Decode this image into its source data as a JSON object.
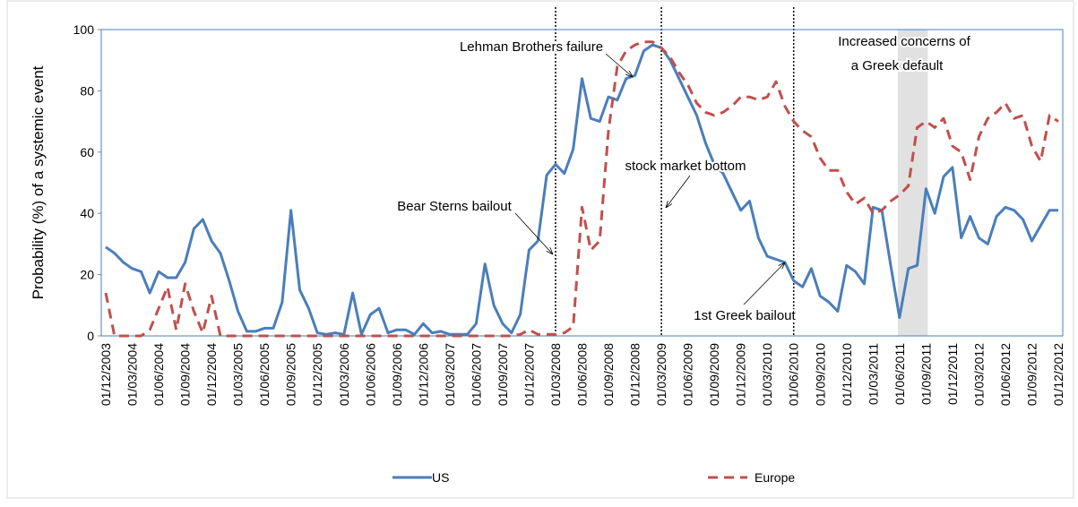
{
  "chart_data": {
    "type": "line",
    "y_label": "Probability (%) of a systemic event",
    "categories": [
      "01/12/2003",
      null,
      null,
      "01/03/2004",
      null,
      null,
      "01/06/2004",
      null,
      null,
      "01/09/2004",
      null,
      null,
      "01/12/2004",
      null,
      null,
      "01/03/2005",
      null,
      null,
      "01/06/2005",
      null,
      null,
      "01/09/2005",
      null,
      null,
      "01/12/2005",
      null,
      null,
      "01/03/2006",
      null,
      null,
      "01/06/2006",
      null,
      null,
      "01/09/2006",
      null,
      null,
      "01/12/2006",
      null,
      null,
      "01/03/2007",
      null,
      null,
      "01/06/2007",
      null,
      null,
      "01/09/2007",
      null,
      null,
      "01/12/2007",
      null,
      null,
      "01/03/2008",
      null,
      null,
      "01/06/2008",
      null,
      null,
      "01/09/2008",
      null,
      null,
      "01/12/2008",
      null,
      null,
      "01/03/2009",
      null,
      null,
      "01/06/2009",
      null,
      null,
      "01/09/2009",
      null,
      null,
      "01/12/2009",
      null,
      null,
      "01/03/2010",
      null,
      null,
      "01/06/2010",
      null,
      null,
      "01/09/2010",
      null,
      null,
      "01/12/2010",
      null,
      null,
      "01/03/2011",
      null,
      null,
      "01/06/2011",
      null,
      null,
      "01/09/2011",
      null,
      null,
      "01/12/2011",
      null,
      null,
      "01/03/2012",
      null,
      null,
      "01/06/2012",
      null,
      null,
      "01/09/2012",
      null,
      null,
      "01/12/2012"
    ],
    "series": [
      {
        "name": "US",
        "color": "#4a7ebb",
        "line_style": "solid",
        "values": [
          29,
          27,
          24,
          22,
          21,
          14,
          21,
          19,
          19,
          24,
          35,
          38,
          31,
          27,
          18,
          8,
          1.5,
          1.5,
          2.5,
          2.5,
          11,
          41,
          15,
          9,
          1,
          0.5,
          1,
          0.5,
          14,
          0.5,
          7,
          9,
          1,
          2,
          2,
          0.5,
          4,
          1,
          1.5,
          0.5,
          0.5,
          0.5,
          4,
          23.5,
          10,
          4,
          1,
          7,
          28,
          31,
          52.5,
          56,
          53,
          61,
          84,
          71,
          70,
          78,
          77,
          84,
          85,
          93,
          95,
          94,
          90,
          84,
          78,
          72,
          63,
          56,
          53,
          47,
          41,
          44,
          32,
          26,
          25,
          24,
          18,
          16,
          22,
          13,
          11,
          8,
          23,
          21,
          17,
          42,
          41,
          23,
          6,
          22,
          23,
          48,
          40,
          52,
          55,
          32,
          39,
          32,
          30,
          39,
          42,
          41,
          38,
          31,
          36,
          41,
          41
        ]
      },
      {
        "name": "Europe",
        "color": "#c0504d",
        "line_style": "dashed",
        "values": [
          14,
          0,
          0,
          0,
          0,
          2,
          9,
          16,
          2,
          17,
          8,
          1,
          13,
          0,
          0,
          0,
          0,
          0,
          0,
          0,
          0,
          0,
          0,
          0,
          0,
          0,
          0,
          0,
          0,
          0,
          0,
          0,
          0,
          0,
          0,
          0,
          0,
          0,
          0,
          0,
          0,
          0,
          0,
          0,
          0,
          0,
          0,
          0.5,
          2,
          0.5,
          0.5,
          0.5,
          1,
          3,
          42,
          28,
          31,
          67,
          88,
          93,
          95,
          96,
          96,
          94,
          91,
          86,
          82,
          76,
          73,
          72,
          73,
          75,
          78,
          78,
          77,
          78,
          83,
          75,
          70,
          67,
          65,
          58,
          54,
          54,
          47,
          43,
          45,
          40,
          41,
          44,
          46,
          49,
          68,
          70,
          68,
          71,
          62,
          60,
          51,
          65,
          71,
          73,
          76,
          71,
          72,
          62,
          57,
          72,
          70
        ]
      }
    ],
    "ylim": [
      0,
      100
    ],
    "yticks": [
      0,
      20,
      40,
      60,
      80,
      100
    ],
    "grid": false,
    "annotations": [
      "Lehman Brothers failure",
      "stock market bottom",
      "Bear Sterns bailout",
      "1st Greek bailout",
      "Increased concerns of",
      "a Greek default"
    ]
  }
}
